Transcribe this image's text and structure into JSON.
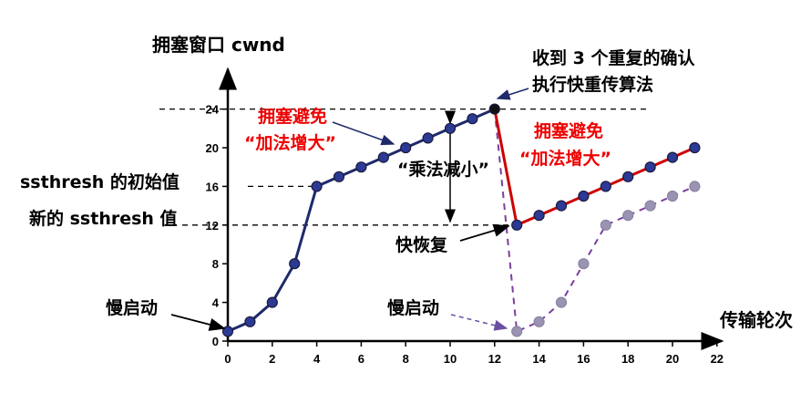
{
  "chart_data": {
    "type": "line",
    "ylabel": "拥塞窗口 cwnd",
    "xlabel": "传输轮次",
    "x_ticks": [
      0,
      2,
      4,
      6,
      8,
      10,
      12,
      14,
      16,
      18,
      20,
      22
    ],
    "y_ticks": [
      0,
      4,
      8,
      12,
      16,
      20,
      24
    ],
    "xlim": [
      0,
      22
    ],
    "ylim": [
      0,
      24
    ],
    "series": [
      {
        "color": "#1f2a6b",
        "points": [
          [
            0,
            1
          ],
          [
            1,
            2
          ],
          [
            2,
            4
          ],
          [
            3,
            8
          ],
          [
            4,
            16
          ],
          [
            5,
            17
          ],
          [
            6,
            18
          ],
          [
            7,
            19
          ],
          [
            8,
            20
          ],
          [
            9,
            21
          ],
          [
            10,
            22
          ],
          [
            11,
            23
          ],
          [
            12,
            24
          ]
        ]
      },
      {
        "color": "#cc0000",
        "points": [
          [
            12,
            24
          ],
          [
            13,
            12
          ],
          [
            14,
            13
          ],
          [
            15,
            14
          ],
          [
            16,
            15
          ],
          [
            17,
            16
          ],
          [
            18,
            17
          ],
          [
            19,
            18
          ],
          [
            20,
            19
          ],
          [
            21,
            20
          ]
        ]
      },
      {
        "color": "#7b3fa0",
        "dashed": true,
        "points": [
          [
            12,
            24
          ],
          [
            13,
            1
          ],
          [
            14,
            2
          ],
          [
            15,
            4
          ],
          [
            16,
            8
          ],
          [
            17,
            12
          ],
          [
            18,
            13
          ],
          [
            19,
            14
          ],
          [
            20,
            15
          ],
          [
            21,
            16
          ]
        ]
      }
    ],
    "reference_lines": [
      {
        "y": 24,
        "x_end": 19
      },
      {
        "y": 16,
        "x_end": 4
      },
      {
        "y": 12,
        "x_end": 13
      }
    ]
  },
  "annotations": {
    "ssthresh_initial": "ssthresh 的初始值",
    "ssthresh_new": "新的 ssthresh 值",
    "slow_start_1": "慢启动",
    "slow_start_2": "慢启动",
    "cong_avoid_1_line1": "拥塞避免",
    "cong_avoid_1_line2": "“加法增大”",
    "cong_avoid_2_line1": "拥塞避免",
    "cong_avoid_2_line2": "“加法增大”",
    "mult_decrease": "“乘法减小”",
    "fast_recovery": "快恢复",
    "dup_ack_line1": "收到 3 个重复的确认",
    "dup_ack_line2": "执行快重传算法"
  },
  "colors": {
    "axis": "#000000",
    "blue_series": "#1f2a6b",
    "red_series": "#cc0000",
    "purple_series": "#7b3fa0",
    "red_text": "#ee0000",
    "marker_gray": "#9a93b2"
  }
}
